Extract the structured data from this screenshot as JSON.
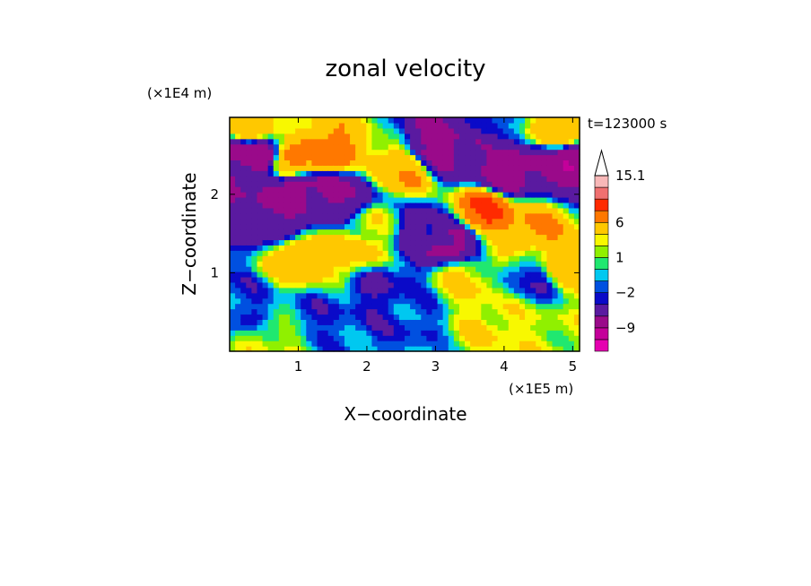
{
  "chart_data": {
    "type": "heatmap",
    "title": "zonal velocity",
    "xlabel": "X−coordinate",
    "ylabel": "Z−coordinate",
    "x_unit": "(×1E5 m)",
    "y_unit": "(×1E4 m)",
    "time_label": "t=123000 s",
    "xlim": [
      0.0,
      5.1
    ],
    "ylim": [
      0.0,
      2.98
    ],
    "xticks": [
      1,
      2,
      3,
      4,
      5
    ],
    "yticks": [
      1,
      2
    ],
    "colorbar": {
      "levels": [
        -15,
        -12,
        -9,
        -6,
        -3,
        -2,
        -1,
        0,
        1,
        2,
        3,
        6,
        9,
        12,
        15.1
      ],
      "colors": [
        "#e500b0",
        "#c4009a",
        "#9a0a8a",
        "#5a1aa0",
        "#0a0ac8",
        "#0050e0",
        "#00c8f0",
        "#20e870",
        "#90f000",
        "#f8f800",
        "#ffc800",
        "#ff7800",
        "#ff2a00",
        "#f07070",
        "#f8b8b8"
      ],
      "tick_labels": [
        "15.1",
        "6",
        "1",
        "−2",
        "−9"
      ],
      "extend_max": true
    },
    "field_points": [
      {
        "x": 0.1,
        "z": 2.5,
        "v": -7
      },
      {
        "x": 0.4,
        "z": 2.5,
        "v": -8
      },
      {
        "x": 0.5,
        "z": 2.0,
        "v": -6
      },
      {
        "x": 0.7,
        "z": 1.65,
        "v": -5
      },
      {
        "x": 1.0,
        "z": 2.1,
        "v": -8
      },
      {
        "x": 1.4,
        "z": 2.05,
        "v": -7
      },
      {
        "x": 1.7,
        "z": 1.95,
        "v": -6
      },
      {
        "x": 3.0,
        "z": 2.6,
        "v": -7
      },
      {
        "x": 3.5,
        "z": 2.65,
        "v": -6
      },
      {
        "x": 4.0,
        "z": 2.3,
        "v": -8
      },
      {
        "x": 4.6,
        "z": 2.35,
        "v": -7
      },
      {
        "x": 5.0,
        "z": 2.45,
        "v": -8
      },
      {
        "x": 3.2,
        "z": 1.4,
        "v": -7
      },
      {
        "x": 2.8,
        "z": 1.55,
        "v": -4
      },
      {
        "x": 2.2,
        "z": 0.8,
        "v": -3
      },
      {
        "x": 1.3,
        "z": 0.4,
        "v": -2
      },
      {
        "x": 2.6,
        "z": 0.5,
        "v": -2
      },
      {
        "x": 0.2,
        "z": 0.6,
        "v": -2
      },
      {
        "x": 4.4,
        "z": 0.9,
        "v": -2
      },
      {
        "x": 3.8,
        "z": 2.85,
        "v": -2
      },
      {
        "x": 0.9,
        "z": 2.4,
        "v": 7
      },
      {
        "x": 1.4,
        "z": 2.5,
        "v": 8
      },
      {
        "x": 2.5,
        "z": 2.3,
        "v": 6
      },
      {
        "x": 3.7,
        "z": 1.8,
        "v": 9
      },
      {
        "x": 4.4,
        "z": 1.6,
        "v": 6
      },
      {
        "x": 0.3,
        "z": 2.85,
        "v": 5
      },
      {
        "x": 4.8,
        "z": 2.8,
        "v": 6
      },
      {
        "x": 1.0,
        "z": 1.2,
        "v": 5
      },
      {
        "x": 1.8,
        "z": 1.3,
        "v": 4
      },
      {
        "x": 3.4,
        "z": 0.9,
        "v": 3
      },
      {
        "x": 4.9,
        "z": 1.1,
        "v": 4
      },
      {
        "x": 2.1,
        "z": 1.6,
        "v": 2
      },
      {
        "x": 3.9,
        "z": 0.4,
        "v": 3
      },
      {
        "x": 4.6,
        "z": 0.2,
        "v": 2
      },
      {
        "x": 0.7,
        "z": 0.1,
        "v": 2
      }
    ]
  }
}
